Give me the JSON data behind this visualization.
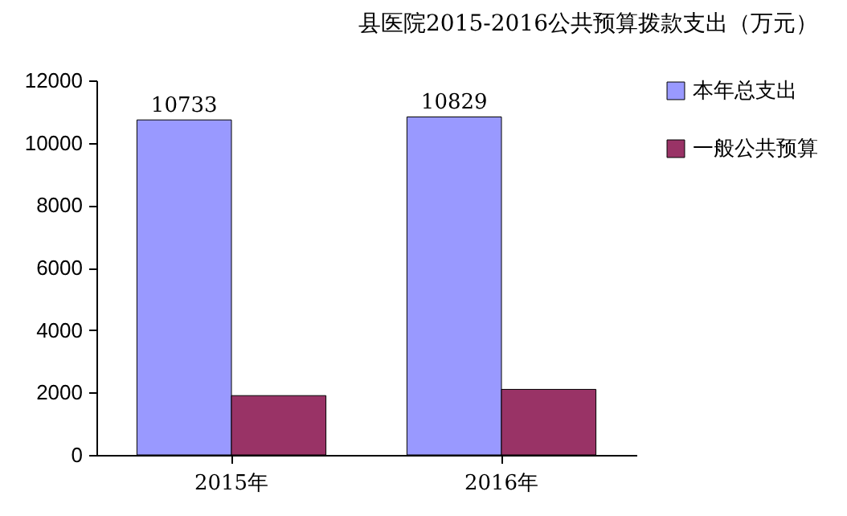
{
  "chart_data": {
    "type": "bar",
    "title": "县医院2015-2016公共预算拨款支出（万元）",
    "categories": [
      "2015年",
      "2016年"
    ],
    "series": [
      {
        "name": "本年总支出",
        "color": "#9999ff",
        "values": [
          10733,
          10829
        ],
        "value_labels": [
          "10733",
          "10829"
        ]
      },
      {
        "name": "一般公共预算",
        "color": "#993366",
        "values": [
          1900,
          2100
        ]
      }
    ],
    "ylim": [
      0,
      12000
    ],
    "yticks": [
      0,
      2000,
      4000,
      6000,
      8000,
      10000,
      12000
    ],
    "grid": false,
    "legend": "right"
  }
}
